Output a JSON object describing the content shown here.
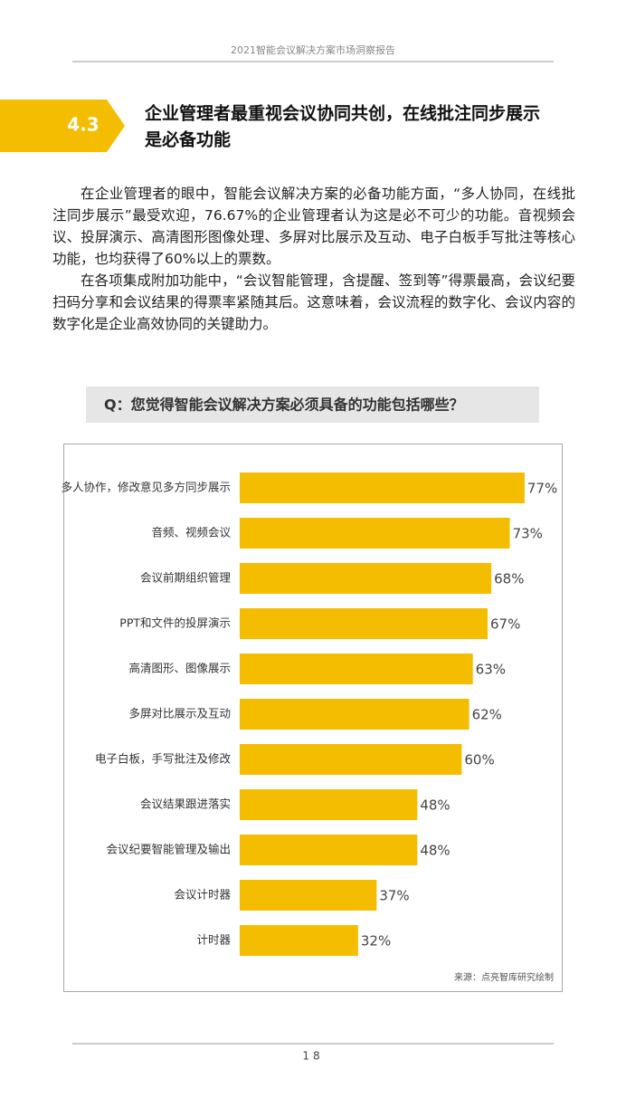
{
  "header": {
    "title": "2021智能会议解决方案市场洞察报告"
  },
  "section": {
    "number": "4.3",
    "title_lines": [
      "企业管理者最重视会议协同共创，在线批注同步展示",
      "是必备功能"
    ]
  },
  "paragraphs": [
    "在企业管理者的眼中，智能会议解决方案的必备功能方面，“多人协同，在线批注同步展示”最受欢迎，76.67%的企业管理者认为这是必不可少的功能。音视频会议、投屏演示、高清图形图像处理、多屏对比展示及互动、电子白板手写批注等核心功能，也均获得了60%以上的票数。",
    "在各项集成附加功能中，“会议智能管理，含提醒、签到等”得票最高，会议纪要扫码分享和会议结果的得票率紧随其后。这意味着，会议流程的数字化、会议内容的数字化是企业高效协同的关键助力。"
  ],
  "chart_data": {
    "type": "bar",
    "title": "Q：您觉得智能会议解决方案必须具备的功能包括哪些？",
    "categories": [
      "多人协作，修改意见多方同步展示",
      "音频、视频会议",
      "会议前期组织管理",
      "PPT和文件的投屏演示",
      "高清图形、图像展示",
      "多屏对比展示及互动",
      "电子白板，手写批注及修改",
      "会议结果跟进落实",
      "会议纪要智能管理及输出",
      "会议计时器",
      "计时器"
    ],
    "values": [
      77,
      73,
      68,
      67,
      63,
      62,
      60,
      48,
      48,
      37,
      32
    ],
    "value_labels": [
      "77%",
      "73%",
      "68%",
      "67%",
      "63%",
      "62%",
      "60%",
      "48%",
      "48%",
      "37%",
      "32%"
    ],
    "color": "#f5bd00",
    "source": "来源：点亮智库研究绘制"
  },
  "footer": {
    "page": "18"
  }
}
